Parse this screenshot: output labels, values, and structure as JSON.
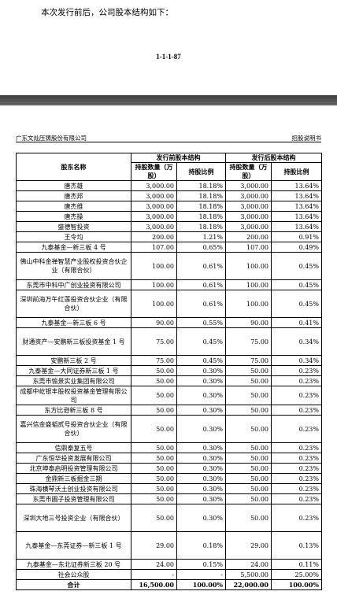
{
  "intro": "本次发行前后，公司股本结构如下：",
  "page_number": "1-1-1-87",
  "header": {
    "company": "广东文灿压铸股份有限公司",
    "doc": "招股说明书"
  },
  "table": {
    "col_name": "股东名称",
    "group_before": "发行前股本结构",
    "group_after": "发行后股本结构",
    "col_qty": "持股数量（万股）",
    "col_ratio": "持股比例",
    "rows": [
      {
        "name": "唐杰雄",
        "b_qty": "3,000.00",
        "b_ratio": "18.18%",
        "a_qty": "3,000.00",
        "a_ratio": "13.64%",
        "h": 1
      },
      {
        "name": "唐杰邦",
        "b_qty": "3,000.00",
        "b_ratio": "18.18%",
        "a_qty": "3,000.00",
        "a_ratio": "13.64%",
        "h": 1
      },
      {
        "name": "唐杰维",
        "b_qty": "3,000.00",
        "b_ratio": "18.18%",
        "a_qty": "3,000.00",
        "a_ratio": "13.64%",
        "h": 1
      },
      {
        "name": "唐杰操",
        "b_qty": "3,000.00",
        "b_ratio": "18.18%",
        "a_qty": "3,000.00",
        "a_ratio": "13.64%",
        "h": 1
      },
      {
        "name": "盛德智投资",
        "b_qty": "3,000.00",
        "b_ratio": "18.18%",
        "a_qty": "3,000.00",
        "a_ratio": "13.64%",
        "h": 1
      },
      {
        "name": "王令均",
        "b_qty": "200.00",
        "b_ratio": "1.21%",
        "a_qty": "200.00",
        "a_ratio": "0.91%",
        "h": 1
      },
      {
        "name": "九泰基金—新三板 4 号",
        "b_qty": "107.00",
        "b_ratio": "0.65%",
        "a_qty": "107.00",
        "a_ratio": "0.49%",
        "h": 1
      },
      {
        "name": "佛山中科金禅智慧产业股权投资合伙企业（有限合伙）",
        "b_qty": "100.00",
        "b_ratio": "0.61%",
        "a_qty": "100.00",
        "a_ratio": "0.45%",
        "h": 3
      },
      {
        "name": "东莞市中科中广创业投资有限公司",
        "b_qty": "100.00",
        "b_ratio": "0.61%",
        "a_qty": "100.00",
        "a_ratio": "0.45%",
        "h": 1
      },
      {
        "name": "深圳前海万午红莲投资合伙企业（有限合伙）",
        "b_qty": "100.00",
        "b_ratio": "0.61%",
        "a_qty": "100.00",
        "a_ratio": "0.45%",
        "h": 3
      },
      {
        "name": "九泰基金—新三板 6 号",
        "b_qty": "90.00",
        "b_ratio": "0.55%",
        "a_qty": "90.00",
        "a_ratio": "0.41%",
        "h": 1
      },
      {
        "name": "财通资产—安鹏新三板投资基金 1 号",
        "b_qty": "75.00",
        "b_ratio": "0.45%",
        "a_qty": "75.00",
        "a_ratio": "0.34%",
        "h": 3
      },
      {
        "name": "安鹏新三板 2 号",
        "b_qty": "75.00",
        "b_ratio": "0.45%",
        "a_qty": "75.00",
        "a_ratio": "0.34%",
        "h": 1
      },
      {
        "name": "九泰基金—大同证券新三板 1 号",
        "b_qty": "50.00",
        "b_ratio": "0.30%",
        "a_qty": "50.00",
        "a_ratio": "0.23%",
        "h": 1
      },
      {
        "name": "东莞市愉景实业集团有限公司",
        "b_qty": "50.00",
        "b_ratio": "0.30%",
        "a_qty": "50.00",
        "a_ratio": "0.23%",
        "h": 1
      },
      {
        "name": "成都中屹银丰股权投资基金管理有限公司",
        "b_qty": "50.00",
        "b_ratio": "0.30%",
        "a_qty": "50.00",
        "a_ratio": "0.23%",
        "h": 2
      },
      {
        "name": "东方比逊新三板 8 号",
        "b_qty": "50.00",
        "b_ratio": "0.30%",
        "a_qty": "50.00",
        "a_ratio": "0.23%",
        "h": 1
      },
      {
        "name": "嘉兴信金盛韬贰号投资合伙企业（有限合伙）",
        "b_qty": "50.00",
        "b_ratio": "0.30%",
        "a_qty": "50.00",
        "a_ratio": "0.23%",
        "h": 3
      },
      {
        "name": "信鼎泰复五号",
        "b_qty": "50.00",
        "b_ratio": "0.30%",
        "a_qty": "50.00",
        "a_ratio": "0.23%",
        "h": 1
      },
      {
        "name": "广东恒华投资发展有限公司",
        "b_qty": "50.00",
        "b_ratio": "0.30%",
        "a_qty": "50.00",
        "a_ratio": "0.23%",
        "h": 1
      },
      {
        "name": "北京坤泰启明投资管理有限公司",
        "b_qty": "50.00",
        "b_ratio": "0.30%",
        "a_qty": "50.00",
        "a_ratio": "0.23%",
        "h": 1
      },
      {
        "name": "金鼎新三板掘金三期",
        "b_qty": "50.00",
        "b_ratio": "0.30%",
        "a_qty": "50.00",
        "a_ratio": "0.23%",
        "h": 1
      },
      {
        "name": "珠海横琴沃土创业投资有限公司",
        "b_qty": "50.00",
        "b_ratio": "0.30%",
        "a_qty": "50.00",
        "a_ratio": "0.23%",
        "h": 1
      },
      {
        "name": "东莞市圃子投资管理有限公司",
        "b_qty": "50.00",
        "b_ratio": "0.30%",
        "a_qty": "50.00",
        "a_ratio": "0.23%",
        "h": 1
      },
      {
        "name": "深圳大地三号投资企业（有限合伙）",
        "b_qty": "50.00",
        "b_ratio": "0.30%",
        "a_qty": "50.00",
        "a_ratio": "0.23%",
        "h": 3
      },
      {
        "name": "九泰基金—东莞证券—新三板 1 号",
        "b_qty": "29.00",
        "b_ratio": "0.18%",
        "a_qty": "29.00",
        "a_ratio": "0.13%",
        "h": 3
      },
      {
        "name": "九泰基金—东北证券新三板 20 号",
        "b_qty": "24.00",
        "b_ratio": "0.15%",
        "a_qty": "24.00",
        "a_ratio": "0.11%",
        "h": 1
      },
      {
        "name": "社会公众股",
        "b_qty": "-",
        "b_ratio": "-",
        "a_qty": "5,500.00",
        "a_ratio": "25.00%",
        "h": 1
      }
    ],
    "total": {
      "name": "合计",
      "b_qty": "16,500.00",
      "b_ratio": "100.00%",
      "a_qty": "22,000.00",
      "a_ratio": "100.00%"
    }
  }
}
